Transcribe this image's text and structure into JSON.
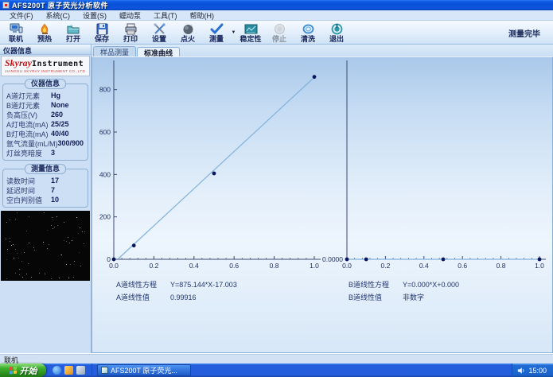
{
  "window": {
    "title": "AFS200T 原子荧光分析软件"
  },
  "menu": {
    "items": [
      "文件(F)",
      "系统(C)",
      "设置(S)",
      "蠕动泵",
      "工具(T)",
      "帮助(H)"
    ]
  },
  "toolbar": {
    "buttons": [
      {
        "label": "联机",
        "icon": "connect-icon"
      },
      {
        "label": "预热",
        "icon": "preheat-flame-icon"
      },
      {
        "label": "打开",
        "icon": "open-folder-icon"
      },
      {
        "label": "保存",
        "icon": "save-floppy-icon"
      },
      {
        "label": "打印",
        "icon": "print-icon"
      },
      {
        "label": "设置",
        "icon": "settings-tools-icon"
      },
      {
        "label": "点火",
        "icon": "ignite-icon"
      },
      {
        "label": "测量",
        "icon": "measure-check-icon"
      },
      {
        "label": "稳定性",
        "icon": "stability-chart-icon"
      },
      {
        "label": "停止",
        "icon": "stop-icon"
      },
      {
        "label": "清洗",
        "icon": "clean-icon"
      },
      {
        "label": "退出",
        "icon": "exit-power-icon"
      }
    ],
    "status_text": "测量完毕"
  },
  "sidebar": {
    "header": "仪器信息",
    "logo": {
      "brand_red": "Skyray",
      "brand_black": "Instrument",
      "subtext": "JIANGSU SKYRAY INSTRUMENT CO.,LTD"
    },
    "instrument_group": {
      "title": "仪器信息",
      "fields": [
        {
          "label": "A道灯元素",
          "value": "Hg"
        },
        {
          "label": "B道灯元素",
          "value": "None"
        },
        {
          "label": "负高压(V)",
          "value": "260"
        },
        {
          "label": "A灯电流(mA)",
          "value": "25/25"
        },
        {
          "label": "B灯电流(mA)",
          "value": "40/40"
        },
        {
          "label": "氩气流量(mL/M)",
          "value": "300/900"
        },
        {
          "label": "灯丝亮暗度",
          "value": "3"
        }
      ]
    },
    "measure_group": {
      "title": "测量信息",
      "fields": [
        {
          "label": "读数时间",
          "value": "17"
        },
        {
          "label": "延迟时间",
          "value": "7"
        },
        {
          "label": "空白判别值",
          "value": "10"
        }
      ]
    }
  },
  "tabs": [
    {
      "label": "样品测量"
    },
    {
      "label": "标准曲线"
    }
  ],
  "chart_data": [
    {
      "type": "scatter",
      "name": "A-channel standard curve",
      "x": [
        0,
        0.1,
        0.5,
        1.0
      ],
      "y": [
        0,
        65,
        405,
        860
      ],
      "fit_line": {
        "slope": 875.144,
        "intercept": -17.003
      },
      "xlim": [
        0,
        1.0
      ],
      "ylim": [
        0,
        900
      ],
      "x_ticks": [
        0,
        0.2,
        0.4,
        0.6,
        0.8,
        1.0
      ],
      "x_tick_labels": [
        "0.0",
        "0.2",
        "0.4",
        "0.6",
        "0.8",
        "1.0"
      ],
      "y_ticks": [
        0,
        200,
        400,
        600,
        800
      ],
      "y_tick_labels": [
        "0",
        "200",
        "400",
        "600",
        "800"
      ],
      "equation_label": "A道线性方程",
      "equation": "Y=875.144*X-17.003",
      "r_label": "A道线性值",
      "r_value": "0.99916"
    },
    {
      "type": "scatter",
      "name": "B-channel standard curve",
      "x": [
        0,
        0.1,
        0.5,
        1.0
      ],
      "y": [
        0,
        0,
        0,
        0
      ],
      "fit_line": {
        "slope": 0,
        "intercept": 0
      },
      "xlim": [
        0,
        1.0
      ],
      "ylim": [
        0,
        900
      ],
      "x_ticks": [
        0,
        0.2,
        0.4,
        0.6,
        0.8,
        1.0
      ],
      "x_tick_labels": [
        "0.0",
        "0.2",
        "0.4",
        "0.6",
        "0.8",
        "1.0"
      ],
      "y_ticks": [],
      "y_tick_labels": [],
      "origin_label": "0.0000",
      "equation_label": "B道线性方程",
      "equation": "Y=0.000*X+0.000",
      "r_label": "B道线性值",
      "r_value": "非数字"
    }
  ],
  "statusbar": {
    "text": "联机"
  },
  "taskbar": {
    "start_label": "开始",
    "task_label": "AFS200T 原子荧光...",
    "clock": "15:00"
  },
  "colors": {
    "fit_line": "#7fb2dd",
    "data_point": "#0a1560",
    "axis": "#3c4a72",
    "tick_text": "#1c2c5e"
  }
}
